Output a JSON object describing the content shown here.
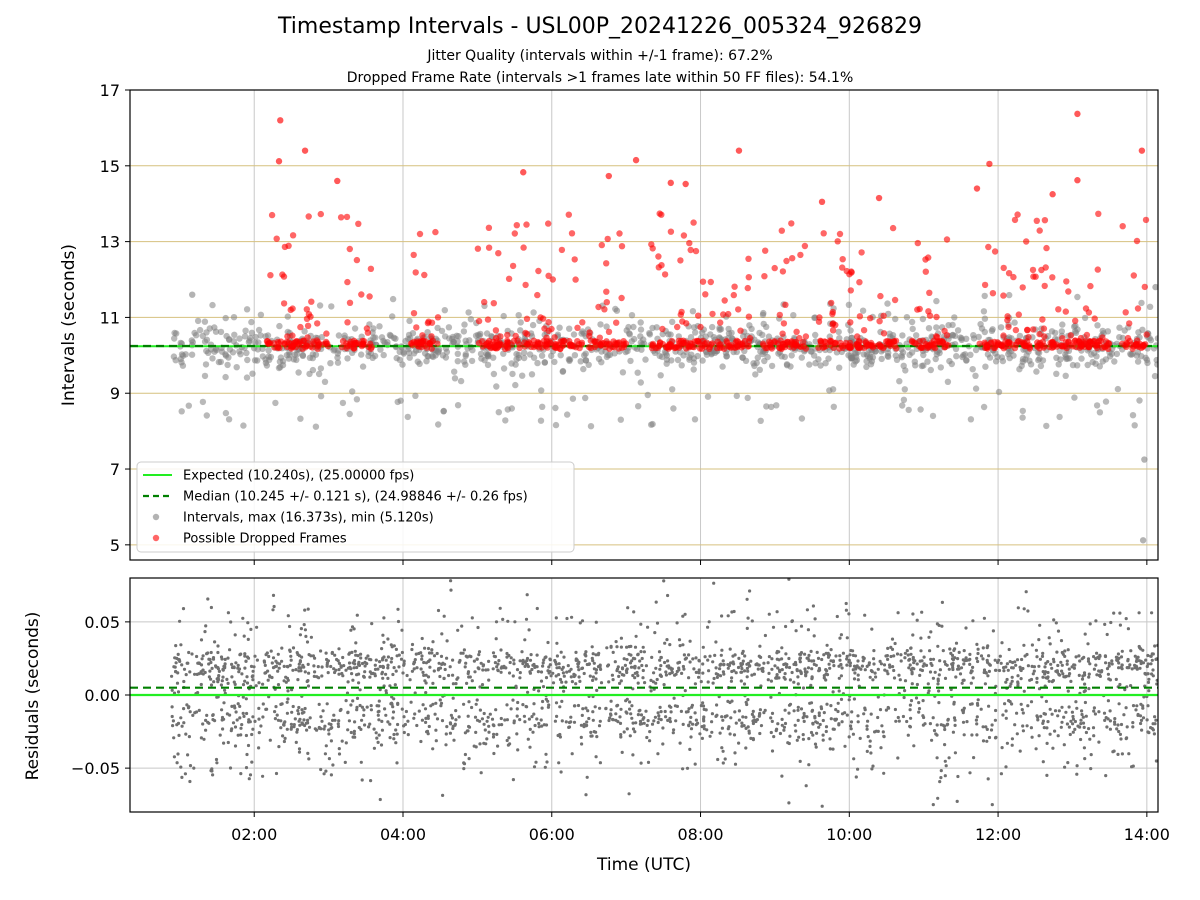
{
  "figure": {
    "title": "Timestamp Intervals - USL00P_20241226_005324_926829",
    "subtitle_1": "Jitter Quality (intervals within +/-1 frame): 67.2%",
    "subtitle_2": "Dropped Frame Rate (intervals >1 frames late within 50 FF files): 54.1%"
  },
  "colors": {
    "expected_line": "#22ee22",
    "median_line": "#008000",
    "intervals_points": "#808080",
    "dropped_points": "#ff0000",
    "residual_points": "#707070",
    "top_hgrid": "#d6c17f",
    "grid": "#c8c8c8"
  },
  "chart_data": [
    {
      "type": "scatter",
      "panel": "intervals",
      "ylabel": "Intervals (seconds)",
      "xlabel": "",
      "ylim": [
        4.6,
        17
      ],
      "xlim_hours": [
        0.33,
        14.15
      ],
      "y_ticks": [
        "5",
        "7",
        "9",
        "11",
        "13",
        "15",
        "17"
      ],
      "y_tick_values": [
        5,
        7,
        9,
        11,
        13,
        15,
        17
      ],
      "x_ticks": [
        "02:00",
        "04:00",
        "06:00",
        "08:00",
        "10:00",
        "12:00",
        "14:00"
      ],
      "x_tick_hours": [
        2,
        4,
        6,
        8,
        10,
        12,
        14
      ],
      "grid": "on",
      "legend_position": "lower-left",
      "expected_value": 10.24,
      "median_value": 10.245,
      "legend": [
        {
          "label": "Expected (10.240s), (25.00000 fps)",
          "marker": "solid-line",
          "color": "#22ee22"
        },
        {
          "label": "Median (10.245 +/- 0.121 s), (24.98846 +/- 0.26 fps)",
          "marker": "dashed-line",
          "color": "#008000"
        },
        {
          "label": "Intervals, max (16.373s), min (5.120s)",
          "marker": "dot",
          "color": "#808080"
        },
        {
          "label": "Possible Dropped Frames",
          "marker": "dot",
          "color": "#ff0000"
        }
      ],
      "intervals_extremes": [
        {
          "x": "13:57",
          "y": 5.12
        },
        {
          "x": "13:58",
          "y": 7.25
        },
        {
          "x": "14:07",
          "y": 11.8
        },
        {
          "x": "01:10",
          "y": 11.6
        }
      ],
      "dropped_highlights": [
        {
          "x": "02:21",
          "y": 16.2
        },
        {
          "x": "13:04",
          "y": 16.37
        },
        {
          "x": "02:20",
          "y": 15.12
        },
        {
          "x": "02:41",
          "y": 15.4
        },
        {
          "x": "07:08",
          "y": 15.15
        },
        {
          "x": "08:31",
          "y": 15.4
        },
        {
          "x": "11:53",
          "y": 15.05
        },
        {
          "x": "13:56",
          "y": 15.4
        },
        {
          "x": "05:37",
          "y": 14.83
        },
        {
          "x": "03:07",
          "y": 14.6
        },
        {
          "x": "06:46",
          "y": 14.73
        },
        {
          "x": "07:36",
          "y": 14.55
        },
        {
          "x": "09:38",
          "y": 14.05
        },
        {
          "x": "10:24",
          "y": 14.15
        },
        {
          "x": "11:43",
          "y": 14.4
        },
        {
          "x": "13:04",
          "y": 14.62
        },
        {
          "x": "07:48",
          "y": 14.52
        },
        {
          "x": "12:44",
          "y": 14.25
        }
      ],
      "dropped_band_ranges": [
        [
          "02:10",
          "03:00"
        ],
        [
          "03:10",
          "03:35"
        ],
        [
          "04:05",
          "04:30"
        ],
        [
          "05:00",
          "06:25"
        ],
        [
          "06:30",
          "07:00"
        ],
        [
          "07:20",
          "08:40"
        ],
        [
          "08:50",
          "09:25"
        ],
        [
          "09:35",
          "10:40"
        ],
        [
          "10:50",
          "11:20"
        ],
        [
          "11:45",
          "13:30"
        ],
        [
          "13:40",
          "14:00"
        ]
      ]
    },
    {
      "type": "scatter",
      "panel": "residuals",
      "ylabel": "Residuals (seconds)",
      "xlabel": "Time (UTC)",
      "ylim": [
        -0.08,
        0.08
      ],
      "xlim_hours": [
        0.33,
        14.15
      ],
      "y_ticks": [
        "−0.05",
        "0.00",
        "0.05"
      ],
      "y_tick_values": [
        -0.05,
        0,
        0.05
      ],
      "x_ticks": [
        "02:00",
        "04:00",
        "06:00",
        "08:00",
        "10:00",
        "12:00",
        "14:00"
      ],
      "x_tick_hours": [
        2,
        4,
        6,
        8,
        10,
        12,
        14
      ],
      "grid": "on",
      "zero_line": 0.0,
      "median_offset": 0.005,
      "residual_band": [
        -0.06,
        0.06
      ],
      "time_span": [
        "00:53",
        "14:09"
      ]
    }
  ]
}
